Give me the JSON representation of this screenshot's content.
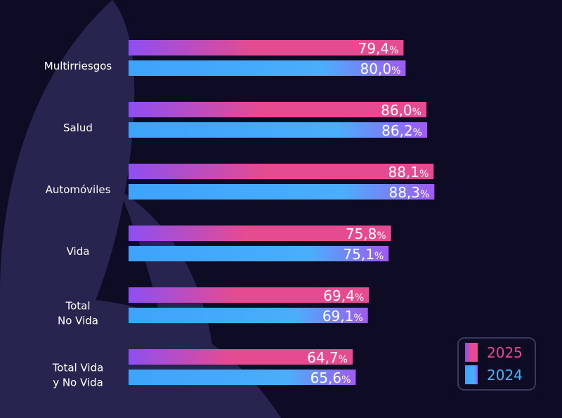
{
  "chart_data": {
    "type": "bar",
    "orientation": "horizontal",
    "categories": [
      [
        "Multirriesgos"
      ],
      [
        "Salud"
      ],
      [
        "Automóviles"
      ],
      [
        "Vida"
      ],
      [
        "Total",
        "No Vida"
      ],
      [
        "Total Vida",
        "y No Vida"
      ]
    ],
    "series": [
      {
        "name": "2025",
        "values": [
          79.4,
          86.0,
          88.1,
          75.8,
          69.4,
          64.7
        ],
        "labels": [
          "79,4",
          "86,0",
          "88,1",
          "75,8",
          "69,4",
          "64,7"
        ],
        "color_start": "#8e4ff2",
        "color_end": "#e54b90"
      },
      {
        "name": "2024",
        "values": [
          80.0,
          86.2,
          88.3,
          75.1,
          69.1,
          65.6
        ],
        "labels": [
          "80,0",
          "86,2",
          "88,3",
          "75,1",
          "69,1",
          "65,6"
        ],
        "color_start": "#3ea3fb",
        "color_end": "#a05af0"
      }
    ],
    "value_suffix": "%",
    "xlim": [
      0,
      100
    ],
    "legend": {
      "placement": "bottom-right",
      "entries": [
        "2025",
        "2024"
      ]
    },
    "grid": false
  },
  "colors": {
    "background": "#0d0c24",
    "decoration": "#27254f",
    "legend_2025_text": "#e54b90",
    "legend_2024_text": "#4eb2fb",
    "legend_border": "#4a4870"
  }
}
